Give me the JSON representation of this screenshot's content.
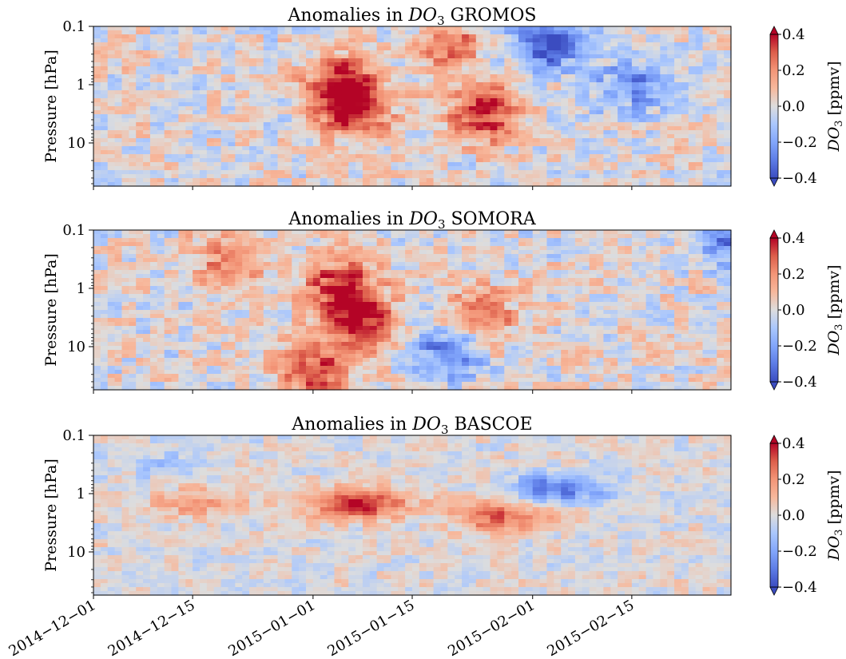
{
  "chart_data": [
    {
      "type": "heatmap",
      "title_prefix": "Anomalies in ",
      "title_species": "DO",
      "title_sub": "3",
      "title_suffix": " GROMOS",
      "ylabel": "Pressure [hPa]",
      "yscale": "log",
      "yticks": [
        "0.1",
        "1",
        "10"
      ],
      "xlim": [
        "2014-12-01",
        "2015-03-01"
      ],
      "colorbar": {
        "label_prefix": "DO",
        "label_sub": "3",
        "label_suffix": " [ppmv]",
        "colormap": "coolwarm",
        "range": [
          -0.4,
          0.4
        ],
        "extend": "both",
        "ticks": [
          "0.4",
          "0.2",
          "0.0",
          "−0.2",
          "−0.4"
        ]
      },
      "features": [
        {
          "date": "2015-01-05",
          "pressure_hPa": 1,
          "value": 0.4
        },
        {
          "date": "2015-01-07",
          "pressure_hPa": 3,
          "value": 0.35
        },
        {
          "date": "2015-01-25",
          "pressure_hPa": 3,
          "value": 0.4
        },
        {
          "date": "2015-02-03",
          "pressure_hPa": 0.2,
          "value": -0.4
        },
        {
          "date": "2015-01-20",
          "pressure_hPa": 0.2,
          "value": 0.25
        },
        {
          "date": "2015-02-15",
          "pressure_hPa": 1,
          "value": -0.25
        }
      ]
    },
    {
      "type": "heatmap",
      "title_prefix": "Anomalies in ",
      "title_species": "DO",
      "title_sub": "3",
      "title_suffix": " SOMORA",
      "ylabel": "Pressure [hPa]",
      "yscale": "log",
      "yticks": [
        "0.1",
        "1",
        "10"
      ],
      "xlim": [
        "2014-12-01",
        "2015-03-01"
      ],
      "colorbar": {
        "label_prefix": "DO",
        "label_sub": "3",
        "label_suffix": " [ppmv]",
        "colormap": "coolwarm",
        "range": [
          -0.4,
          0.4
        ],
        "extend": "both",
        "ticks": [
          "0.4",
          "0.2",
          "0.0",
          "−0.2",
          "−0.4"
        ]
      },
      "features": [
        {
          "date": "2015-01-05",
          "pressure_hPa": 1,
          "value": 0.4
        },
        {
          "date": "2015-01-08",
          "pressure_hPa": 4,
          "value": 0.35
        },
        {
          "date": "2015-01-01",
          "pressure_hPa": 30,
          "value": 0.35
        },
        {
          "date": "2015-01-25",
          "pressure_hPa": 3,
          "value": 0.3
        },
        {
          "date": "2014-12-20",
          "pressure_hPa": 0.3,
          "value": 0.25
        },
        {
          "date": "2015-01-20",
          "pressure_hPa": 12,
          "value": -0.3
        },
        {
          "date": "2015-03-01",
          "pressure_hPa": 0.12,
          "value": -0.3
        }
      ]
    },
    {
      "type": "heatmap",
      "title_prefix": "Anomalies in ",
      "title_species": "DO",
      "title_sub": "3",
      "title_suffix": " BASCOE",
      "ylabel": "Pressure [hPa]",
      "yscale": "log",
      "yticks": [
        "0.1",
        "1",
        "10"
      ],
      "xlim": [
        "2014-12-01",
        "2015-03-01"
      ],
      "xticks": [
        "2014−12−01",
        "2014−12−15",
        "2015−01−01",
        "2015−01−15",
        "2015−02−01",
        "2015−02−15"
      ],
      "colorbar": {
        "label_prefix": "DO",
        "label_sub": "3",
        "label_suffix": " [ppmv]",
        "colormap": "coolwarm",
        "range": [
          -0.4,
          0.4
        ],
        "extend": "both",
        "ticks": [
          "0.4",
          "0.2",
          "0.0",
          "−0.2",
          "−0.4"
        ]
      },
      "features": [
        {
          "date": "2015-01-07",
          "pressure_hPa": 1.5,
          "value": 0.4
        },
        {
          "date": "2015-01-28",
          "pressure_hPa": 2.5,
          "value": 0.3
        },
        {
          "date": "2015-02-05",
          "pressure_hPa": 0.8,
          "value": -0.3
        },
        {
          "date": "2014-12-15",
          "pressure_hPa": 1.5,
          "value": 0.15
        },
        {
          "date": "2014-12-10",
          "pressure_hPa": 0.3,
          "value": -0.1
        }
      ]
    }
  ]
}
